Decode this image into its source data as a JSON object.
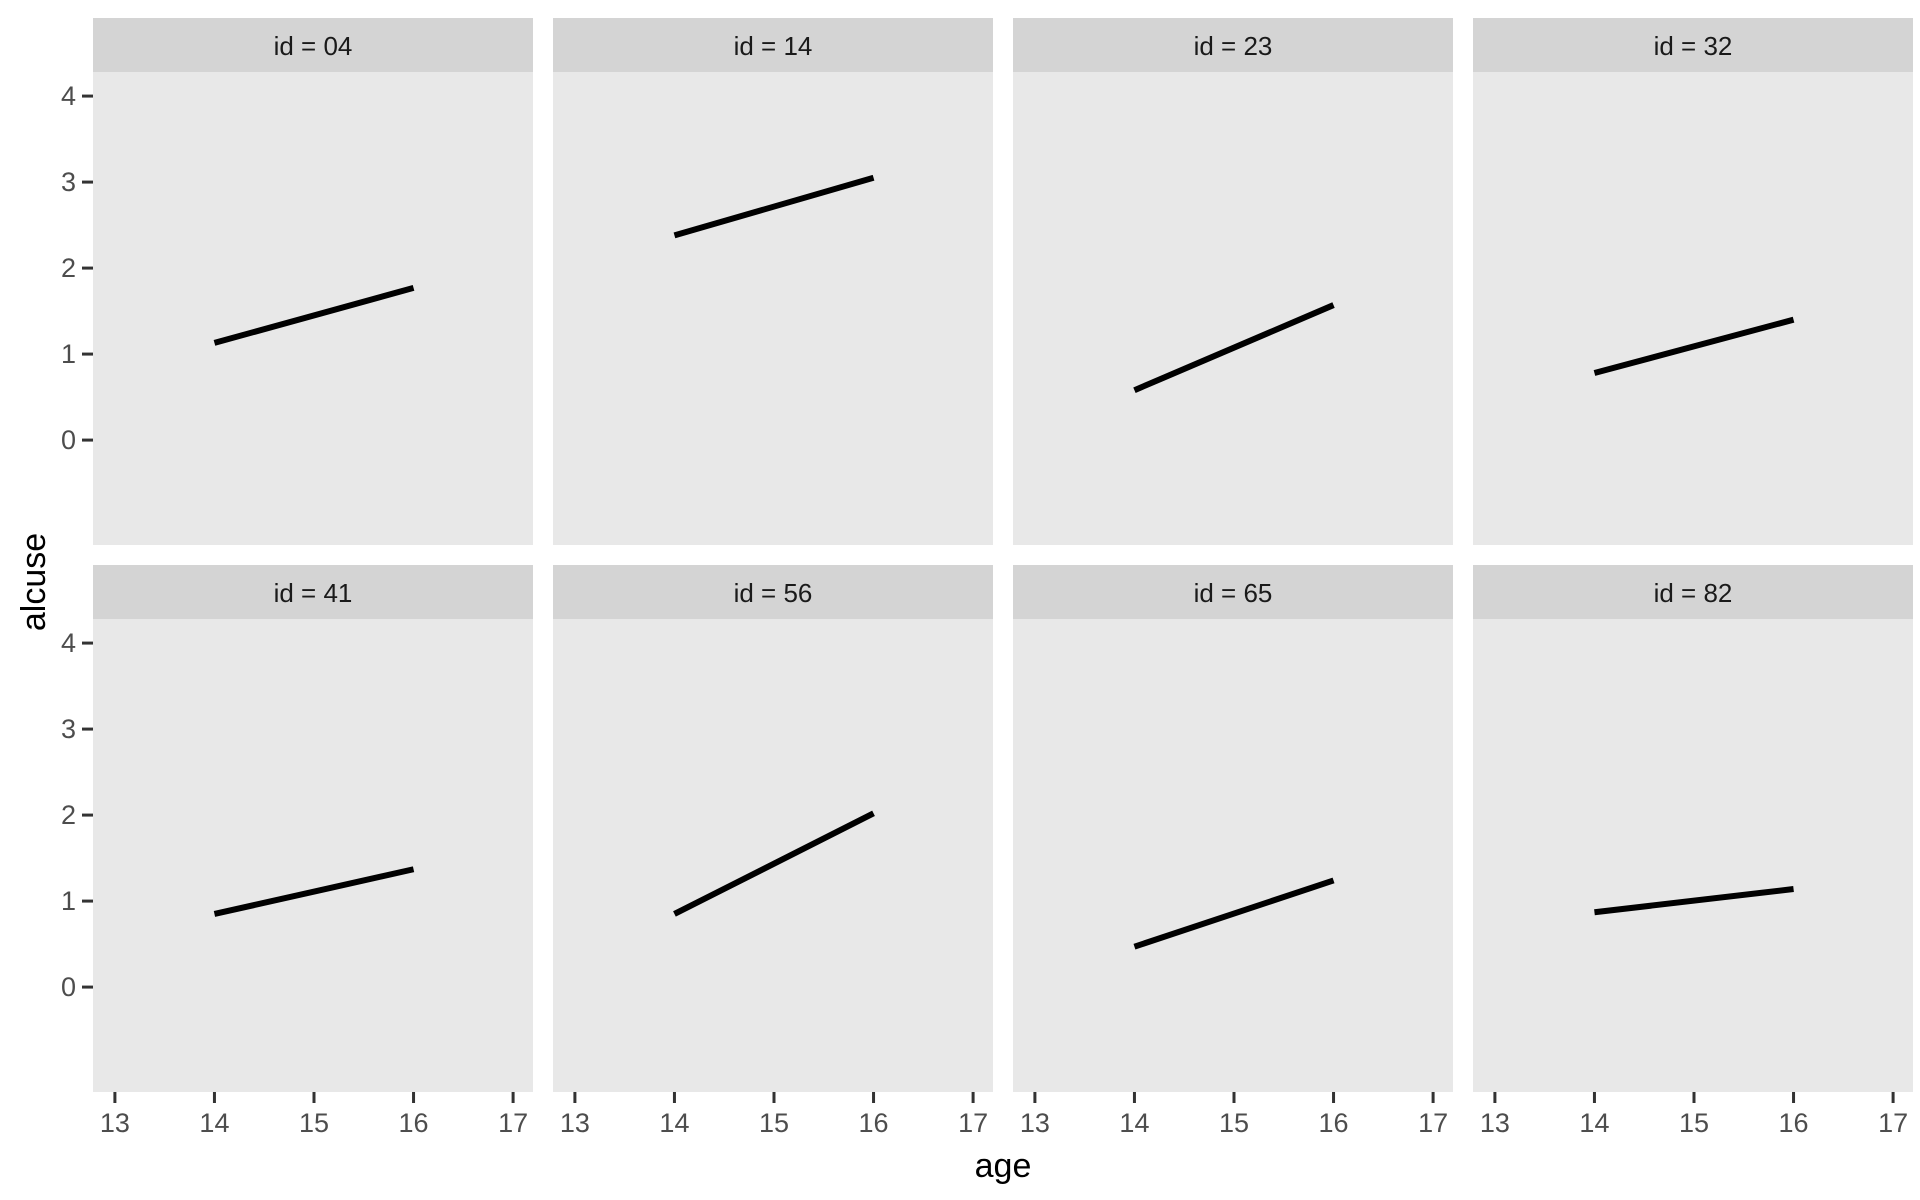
{
  "figure": {
    "description": "Faceted ggplot-style panel of linear alcohol-use trajectories by subject id",
    "colors": {
      "background": "#FFFFFF",
      "panel_bg": "#E8E8E8",
      "strip_bg": "#D4D4D4",
      "strip_text": "#1A1A1A",
      "tick_label": "#4D4D4D",
      "tick_mark": "#333333",
      "axis_title": "#000000",
      "line": "#000000"
    }
  },
  "chart_data": {
    "type": "line",
    "title": "",
    "xlabel": "age",
    "ylabel": "alcuse",
    "facet_variable": "id",
    "grid": false,
    "legend": "none",
    "layout": {
      "rows": 2,
      "cols": 4
    },
    "x_ticks": [
      13,
      14,
      15,
      16,
      17
    ],
    "y_ticks": [
      4,
      3,
      2,
      1,
      0
    ],
    "xlim": [
      12.78,
      17.2
    ],
    "ylim": [
      -1.22,
      4.28
    ],
    "facets": [
      {
        "label": "id = 04",
        "x": [
          14,
          16
        ],
        "y": [
          1.13,
          1.77
        ]
      },
      {
        "label": "id = 14",
        "x": [
          14,
          16
        ],
        "y": [
          2.38,
          3.05
        ]
      },
      {
        "label": "id = 23",
        "x": [
          14,
          16
        ],
        "y": [
          0.58,
          1.57
        ]
      },
      {
        "label": "id = 32",
        "x": [
          14,
          16
        ],
        "y": [
          0.78,
          1.4
        ]
      },
      {
        "label": "id = 41",
        "x": [
          14,
          16
        ],
        "y": [
          0.85,
          1.37
        ]
      },
      {
        "label": "id = 56",
        "x": [
          14,
          16
        ],
        "y": [
          0.85,
          2.02
        ]
      },
      {
        "label": "id = 65",
        "x": [
          14,
          16
        ],
        "y": [
          0.47,
          1.24
        ]
      },
      {
        "label": "id = 82",
        "x": [
          14,
          16
        ],
        "y": [
          0.87,
          1.14
        ]
      }
    ]
  }
}
